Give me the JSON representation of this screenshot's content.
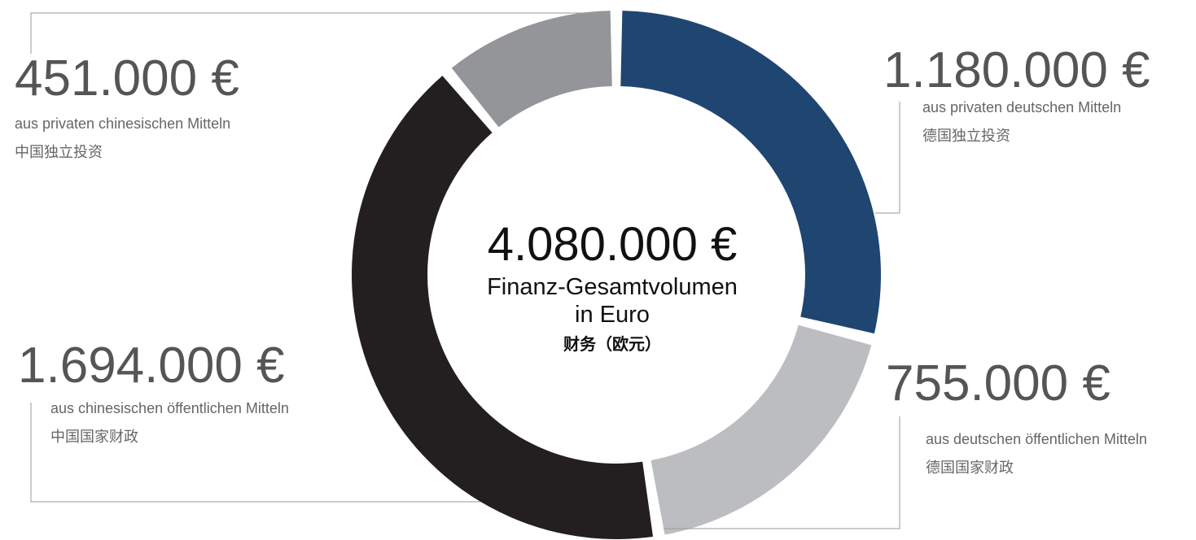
{
  "chart_data": {
    "type": "donut",
    "categories": [
      "aus privaten deutschen Mitteln",
      "aus deutschen öffentlichen Mitteln",
      "aus chinesischen öffentlichen Mitteln",
      "aus privaten chinesischen Mitteln"
    ],
    "subcategories": [
      "德国独立投资",
      "德国国家财政",
      "中国国家财政",
      "中国独立投资"
    ],
    "values": [
      1180000,
      755000,
      1694000,
      451000
    ],
    "value_labels": [
      "1.180.000 €",
      "755.000 €",
      "1.694.000 €",
      "451.000 €"
    ],
    "colors": [
      "#1f4571",
      "#bcbdc0",
      "#231f20",
      "#939598"
    ],
    "center_text": [
      "4.080.000 €",
      "Finanz-Gesamtvolumen",
      "in Euro",
      "财务（欧元）"
    ]
  }
}
